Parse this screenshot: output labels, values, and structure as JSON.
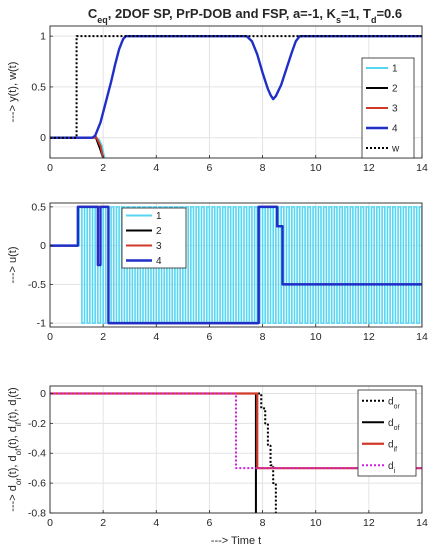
{
  "figure": {
    "title": "C_eq, 2DOF SP, PrP-DOB and FSP, a=-1, K_s=1, T_d=0.6"
  },
  "chart_data": [
    {
      "type": "line",
      "ylabel": "---> y(t), w(t)",
      "xlim": [
        0,
        14
      ],
      "ylim": [
        -0.2,
        1.1
      ],
      "xticks": [
        0,
        2,
        4,
        6,
        8,
        10,
        12,
        14
      ],
      "yticks": [
        0,
        0.5,
        1
      ],
      "grid": true,
      "legend": "right",
      "series": [
        {
          "name": "1",
          "color": "#55d6f2",
          "width": 2,
          "dash": "",
          "points": [
            [
              0,
              0
            ],
            [
              1.1,
              0
            ],
            [
              1.7,
              0
            ],
            [
              1.85,
              -0.02
            ],
            [
              1.95,
              -0.08
            ],
            [
              2.0,
              -0.14
            ],
            [
              2.05,
              -0.2
            ]
          ]
        },
        {
          "name": "2",
          "color": "#000000",
          "width": 2,
          "dash": "",
          "points": [
            [
              0,
              0
            ],
            [
              1.6,
              0
            ],
            [
              1.7,
              0.02
            ],
            [
              1.8,
              -0.05
            ],
            [
              1.9,
              -0.12
            ],
            [
              2.0,
              -0.2
            ]
          ]
        },
        {
          "name": "3",
          "color": "#d03a2a",
          "width": 2,
          "dash": "",
          "points": [
            [
              0,
              0
            ],
            [
              1.6,
              0
            ],
            [
              1.75,
              0
            ],
            [
              1.9,
              -0.08
            ],
            [
              2.0,
              -0.2
            ]
          ]
        },
        {
          "name": "4",
          "color": "#1f2fc8",
          "width": 2.4,
          "dash": "",
          "points": [
            [
              0,
              0
            ],
            [
              1.6,
              0
            ],
            [
              1.7,
              0.02
            ],
            [
              1.9,
              0.15
            ],
            [
              2.1,
              0.35
            ],
            [
              2.3,
              0.55
            ],
            [
              2.45,
              0.72
            ],
            [
              2.6,
              0.87
            ],
            [
              2.75,
              0.97
            ],
            [
              2.85,
              1
            ],
            [
              7.4,
              1
            ],
            [
              7.6,
              0.95
            ],
            [
              7.8,
              0.82
            ],
            [
              8.0,
              0.64
            ],
            [
              8.2,
              0.48
            ],
            [
              8.3,
              0.42
            ],
            [
              8.4,
              0.38
            ],
            [
              8.5,
              0.41
            ],
            [
              8.7,
              0.52
            ],
            [
              8.9,
              0.68
            ],
            [
              9.1,
              0.84
            ],
            [
              9.25,
              0.95
            ],
            [
              9.4,
              1
            ],
            [
              14,
              1
            ]
          ]
        },
        {
          "name": "w",
          "color": "#000000",
          "width": 2,
          "dash": "2,2",
          "points": [
            [
              0,
              0
            ],
            [
              1,
              0
            ],
            [
              1,
              1
            ],
            [
              14,
              1
            ]
          ]
        }
      ]
    },
    {
      "type": "line",
      "ylabel": "---> u(t)",
      "xlim": [
        0,
        14
      ],
      "ylim": [
        -1.05,
        0.55
      ],
      "xticks": [
        0,
        2,
        4,
        6,
        8,
        10,
        12,
        14
      ],
      "yticks": [
        -1,
        -0.5,
        0,
        0.5
      ],
      "grid": true,
      "legend": "top-left",
      "square_wave": {
        "name": "1",
        "color": "#55d6f2",
        "start": 1.1,
        "end": 14,
        "period": 0.2,
        "high": 0.5,
        "low": -1
      },
      "series": [
        {
          "name": "2",
          "color": "#000000",
          "width": 2,
          "dash": "",
          "points": [
            [
              0,
              0
            ],
            [
              1.05,
              0
            ],
            [
              1.05,
              0.5
            ],
            [
              2.2,
              0.5
            ],
            [
              2.2,
              -1
            ],
            [
              7.85,
              -1
            ],
            [
              7.85,
              0.5
            ],
            [
              8.55,
              0.5
            ],
            [
              8.55,
              0.25
            ],
            [
              8.75,
              0.25
            ],
            [
              8.75,
              -0.5
            ],
            [
              14,
              -0.5
            ]
          ]
        },
        {
          "name": "3",
          "color": "#d03a2a",
          "width": 2,
          "dash": "",
          "points": [
            [
              0,
              0
            ],
            [
              1.05,
              0
            ],
            [
              1.05,
              0.5
            ],
            [
              2.2,
              0.5
            ],
            [
              2.2,
              -1
            ],
            [
              7.85,
              -1
            ],
            [
              7.85,
              0.5
            ],
            [
              8.55,
              0.5
            ],
            [
              8.55,
              0.25
            ],
            [
              8.75,
              0.25
            ],
            [
              8.75,
              -0.5
            ],
            [
              14,
              -0.5
            ]
          ]
        },
        {
          "name": "4",
          "color": "#1f2fc8",
          "width": 2.4,
          "dash": "",
          "points": [
            [
              0,
              0
            ],
            [
              1.05,
              0
            ],
            [
              1.05,
              0.5
            ],
            [
              1.8,
              0.5
            ],
            [
              1.8,
              -0.25
            ],
            [
              1.9,
              -0.25
            ],
            [
              1.9,
              0.5
            ],
            [
              2.2,
              0.5
            ],
            [
              2.2,
              -1
            ],
            [
              7.85,
              -1
            ],
            [
              7.85,
              0.5
            ],
            [
              8.55,
              0.5
            ],
            [
              8.55,
              0.25
            ],
            [
              8.75,
              0.25
            ],
            [
              8.75,
              -0.5
            ],
            [
              14,
              -0.5
            ]
          ]
        }
      ]
    },
    {
      "type": "line",
      "ylabel": "---> d_or(t), d_of(t), d_if(t), d_i(t)",
      "xlabel": "---> Time t",
      "xlim": [
        0,
        14
      ],
      "ylim": [
        -0.8,
        0.05
      ],
      "xticks": [
        0,
        2,
        4,
        6,
        8,
        10,
        12,
        14
      ],
      "yticks": [
        -0.8,
        -0.6,
        -0.4,
        -0.2,
        0
      ],
      "grid": true,
      "legend": "top-right",
      "series": [
        {
          "name": "d_or",
          "color": "#000000",
          "width": 2,
          "dash": "2,2",
          "points": [
            [
              0,
              0
            ],
            [
              7.95,
              0
            ],
            [
              7.95,
              -0.1
            ],
            [
              8.1,
              -0.1
            ],
            [
              8.1,
              -0.2
            ],
            [
              8.2,
              -0.2
            ],
            [
              8.2,
              -0.35
            ],
            [
              8.3,
              -0.35
            ],
            [
              8.3,
              -0.48
            ],
            [
              8.4,
              -0.48
            ],
            [
              8.4,
              -0.6
            ],
            [
              8.5,
              -0.6
            ],
            [
              8.5,
              -0.8
            ]
          ]
        },
        {
          "name": "d_of",
          "color": "#000000",
          "width": 2,
          "dash": "",
          "points": [
            [
              0,
              0
            ],
            [
              7.75,
              0
            ],
            [
              7.75,
              -0.8
            ]
          ]
        },
        {
          "name": "d_if",
          "color": "#d03a2a",
          "width": 2.2,
          "dash": "",
          "points": [
            [
              0,
              0
            ],
            [
              7.8,
              0
            ],
            [
              7.8,
              -0.5
            ],
            [
              14,
              -0.5
            ]
          ]
        },
        {
          "name": "d_i",
          "color": "#d21ee0",
          "width": 2,
          "dash": "2,2",
          "points": [
            [
              0,
              0
            ],
            [
              7,
              0
            ],
            [
              7,
              -0.5
            ],
            [
              14,
              -0.5
            ]
          ]
        }
      ]
    }
  ]
}
